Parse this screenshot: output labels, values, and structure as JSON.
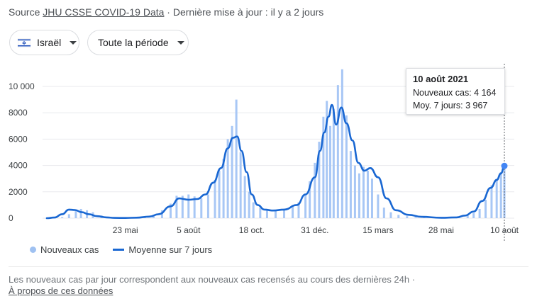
{
  "header": {
    "source_prefix": "Source",
    "source_link": "JHU CSSE COVID-19 Data",
    "updated": " · Dernière mise à jour : il y a 2 jours"
  },
  "filters": {
    "country": "Israël",
    "country_flag": "israel-flag-icon",
    "period": "Toute la période"
  },
  "tooltip": {
    "date": "10 août 2021",
    "new_cases_line": "Nouveaux cas: 4 164",
    "avg_line": "Moy. 7 jours: 3 967"
  },
  "legend": {
    "bars": "Nouveaux cas",
    "line": "Moyenne sur 7 jours"
  },
  "footer": {
    "note": "Les nouveaux cas par jour correspondent aux nouveaux cas recensés au cours des dernières 24h  ·",
    "about_link": "À propos de ces données"
  },
  "colors": {
    "bars": "#a8c7f5",
    "line": "#1967d2",
    "grid": "#e8eaed",
    "marker": "#4285f4"
  },
  "chart_data": {
    "type": "bar",
    "title": "",
    "xlabel": "",
    "ylabel": "",
    "ylim": [
      0,
      11500
    ],
    "y_ticks": [
      0,
      2000,
      4000,
      6000,
      8000,
      10000
    ],
    "y_tick_labels": [
      "0",
      "2000",
      "4000",
      "6000",
      "8000",
      "10 000"
    ],
    "x_range": [
      "2020-02-21",
      "2021-08-10"
    ],
    "x_ticks": [
      "2020-05-23",
      "2020-08-05",
      "2020-10-18",
      "2020-12-31",
      "2021-03-15",
      "2021-05-28",
      "2021-08-10"
    ],
    "x_tick_labels": [
      "23 mai",
      "5 août",
      "18 oct.",
      "31 déc.",
      "15 mars",
      "28 mai",
      "10 août"
    ],
    "grid": true,
    "legend_position": "bottom-left",
    "series": [
      {
        "name": "Nouveaux cas",
        "type": "bar",
        "dates": [
          "2020-02-21",
          "2020-03-01",
          "2020-03-10",
          "2020-03-18",
          "2020-03-26",
          "2020-04-01",
          "2020-04-08",
          "2020-04-15",
          "2020-04-25",
          "2020-05-05",
          "2020-05-15",
          "2020-05-25",
          "2020-06-05",
          "2020-06-15",
          "2020-06-25",
          "2020-07-05",
          "2020-07-15",
          "2020-07-22",
          "2020-07-29",
          "2020-08-05",
          "2020-08-12",
          "2020-08-20",
          "2020-08-28",
          "2020-09-05",
          "2020-09-10",
          "2020-09-15",
          "2020-09-20",
          "2020-09-25",
          "2020-09-30",
          "2020-10-05",
          "2020-10-10",
          "2020-10-15",
          "2020-10-20",
          "2020-10-28",
          "2020-11-05",
          "2020-11-15",
          "2020-11-25",
          "2020-12-05",
          "2020-12-12",
          "2020-12-20",
          "2020-12-25",
          "2020-12-31",
          "2021-01-05",
          "2021-01-10",
          "2021-01-14",
          "2021-01-18",
          "2021-01-22",
          "2021-01-27",
          "2021-02-01",
          "2021-02-06",
          "2021-02-11",
          "2021-02-16",
          "2021-02-21",
          "2021-02-26",
          "2021-03-03",
          "2021-03-08",
          "2021-03-15",
          "2021-03-22",
          "2021-03-30",
          "2021-04-08",
          "2021-04-18",
          "2021-04-28",
          "2021-05-08",
          "2021-05-18",
          "2021-05-28",
          "2021-06-08",
          "2021-06-18",
          "2021-06-28",
          "2021-07-05",
          "2021-07-12",
          "2021-07-19",
          "2021-07-26",
          "2021-08-01",
          "2021-08-06",
          "2021-08-10"
        ],
        "values": [
          0,
          5,
          80,
          300,
          550,
          700,
          600,
          450,
          200,
          80,
          30,
          20,
          30,
          80,
          200,
          600,
          1100,
          1700,
          1700,
          1800,
          1650,
          1500,
          1800,
          2900,
          3600,
          4500,
          6000,
          7000,
          9000,
          5000,
          3200,
          2000,
          1200,
          800,
          650,
          600,
          700,
          900,
          1200,
          1800,
          2800,
          4200,
          5800,
          7700,
          8900,
          7000,
          8300,
          10100,
          11300,
          7800,
          5100,
          4000,
          3400,
          3900,
          3600,
          3000,
          1800,
          800,
          450,
          250,
          150,
          70,
          50,
          40,
          20,
          15,
          50,
          200,
          380,
          700,
          1400,
          2500,
          3000,
          3500,
          4164
        ]
      },
      {
        "name": "Moyenne sur 7 jours",
        "type": "line",
        "dates": [
          "2020-02-21",
          "2020-03-01",
          "2020-03-10",
          "2020-03-18",
          "2020-03-25",
          "2020-04-02",
          "2020-04-10",
          "2020-04-20",
          "2020-05-01",
          "2020-05-10",
          "2020-05-23",
          "2020-06-05",
          "2020-06-20",
          "2020-07-01",
          "2020-07-15",
          "2020-07-25",
          "2020-08-05",
          "2020-08-15",
          "2020-08-25",
          "2020-09-03",
          "2020-09-12",
          "2020-09-20",
          "2020-09-26",
          "2020-10-01",
          "2020-10-06",
          "2020-10-12",
          "2020-10-18",
          "2020-10-25",
          "2020-11-02",
          "2020-11-12",
          "2020-11-25",
          "2020-12-10",
          "2020-12-20",
          "2020-12-31",
          "2021-01-06",
          "2021-01-11",
          "2021-01-16",
          "2021-01-20",
          "2021-01-25",
          "2021-01-31",
          "2021-02-06",
          "2021-02-13",
          "2021-02-20",
          "2021-02-27",
          "2021-03-06",
          "2021-03-15",
          "2021-03-25",
          "2021-04-05",
          "2021-04-20",
          "2021-05-05",
          "2021-05-28",
          "2021-06-15",
          "2021-06-25",
          "2021-07-05",
          "2021-07-15",
          "2021-07-25",
          "2021-08-01",
          "2021-08-06",
          "2021-08-10"
        ],
        "values": [
          0,
          50,
          300,
          650,
          620,
          450,
          300,
          150,
          60,
          20,
          15,
          40,
          120,
          300,
          900,
          1500,
          1400,
          1450,
          1800,
          2700,
          3800,
          5300,
          6100,
          6200,
          5100,
          3500,
          1800,
          1000,
          650,
          580,
          650,
          1000,
          1800,
          3100,
          5100,
          6500,
          7700,
          8600,
          7100,
          8400,
          7200,
          5900,
          4200,
          3600,
          3800,
          3100,
          1500,
          600,
          250,
          100,
          30,
          60,
          200,
          500,
          1300,
          2300,
          2900,
          3400,
          3967
        ]
      }
    ],
    "highlight": {
      "date": "2021-08-10",
      "new_cases": 4164,
      "avg_7d": 3967
    }
  }
}
